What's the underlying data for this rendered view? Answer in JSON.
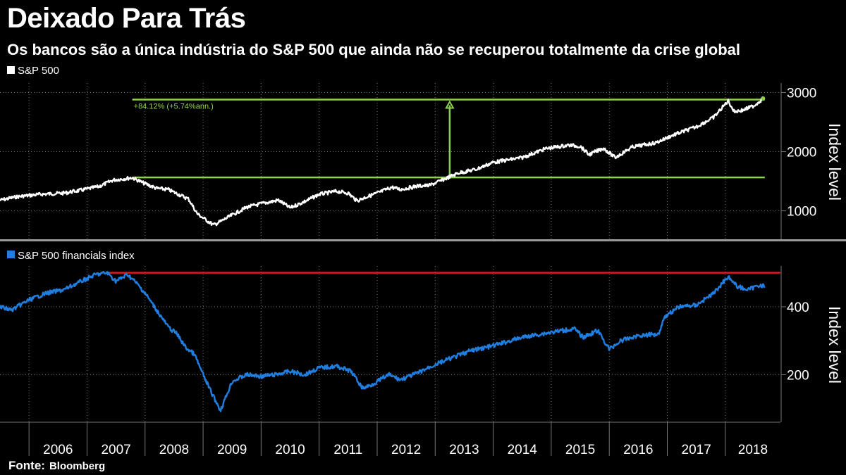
{
  "title": "Deixado Para Trás",
  "subtitle": "Os bancos são a única indústria do S&P 500 que ainda não se recuperou totalmente da crise global",
  "source": {
    "label": "Fonte:",
    "value": "Bloomberg"
  },
  "colors": {
    "background": "#000000",
    "sp500_line": "#ffffff",
    "financials_line": "#1f7ee0",
    "annotation": "#8fd14f",
    "peak_line": "#e0181b",
    "grid": "#777777",
    "divider": "#9a9a9a"
  },
  "chart_data": [
    {
      "type": "line",
      "series": [
        {
          "name": "S&P 500",
          "x": [
            2005.5,
            2005.8,
            2006.2,
            2006.6,
            2006.9,
            2007.2,
            2007.45,
            2007.78,
            2007.95,
            2008.2,
            2008.4,
            2008.55,
            2008.75,
            2008.9,
            2009.0,
            2009.18,
            2009.3,
            2009.5,
            2009.75,
            2010.0,
            2010.3,
            2010.5,
            2010.8,
            2011.0,
            2011.3,
            2011.5,
            2011.65,
            2011.8,
            2012.0,
            2012.25,
            2012.4,
            2012.7,
            2012.9,
            2013.1,
            2013.4,
            2013.7,
            2014.0,
            2014.5,
            2014.9,
            2015.3,
            2015.5,
            2015.65,
            2015.9,
            2016.1,
            2016.4,
            2016.8,
            2017.1,
            2017.5,
            2017.8,
            2018.05,
            2018.15,
            2018.3,
            2018.5,
            2018.65
          ],
          "values": [
            1180,
            1240,
            1280,
            1300,
            1350,
            1410,
            1520,
            1560,
            1480,
            1380,
            1360,
            1290,
            1200,
            950,
            880,
            760,
            820,
            930,
            1060,
            1120,
            1180,
            1050,
            1180,
            1280,
            1330,
            1300,
            1170,
            1230,
            1300,
            1400,
            1360,
            1420,
            1430,
            1510,
            1640,
            1700,
            1820,
            1900,
            2050,
            2110,
            2090,
            1950,
            2060,
            1900,
            2080,
            2150,
            2280,
            2420,
            2580,
            2860,
            2680,
            2700,
            2780,
            2900
          ]
        }
      ],
      "xlim": [
        2005.5,
        2018.95
      ],
      "ylim": [
        520,
        3160
      ],
      "yticks": [
        1000,
        2000,
        3000
      ],
      "ylabel": "Index level",
      "legend": "S&P 500",
      "annotation": {
        "text": "+84.12% (+5.74%ann.)",
        "from_value": 1565,
        "to_value": 2880,
        "start_x": 2007.78,
        "arrow_x": 2013.25,
        "end_x": 2018.68
      }
    },
    {
      "type": "line",
      "series": [
        {
          "name": "S&P 500 financials index",
          "x": [
            2005.5,
            2005.7,
            2006.0,
            2006.3,
            2006.6,
            2006.9,
            2007.15,
            2007.35,
            2007.5,
            2007.7,
            2007.85,
            2008.0,
            2008.2,
            2008.4,
            2008.55,
            2008.7,
            2008.85,
            2009.0,
            2009.15,
            2009.3,
            2009.5,
            2009.75,
            2010.0,
            2010.25,
            2010.5,
            2010.75,
            2011.0,
            2011.3,
            2011.55,
            2011.75,
            2011.9,
            2012.2,
            2012.4,
            2012.7,
            2013.0,
            2013.3,
            2013.6,
            2014.0,
            2014.5,
            2015.0,
            2015.4,
            2015.55,
            2015.8,
            2016.0,
            2016.2,
            2016.5,
            2016.85,
            2016.95,
            2017.2,
            2017.5,
            2017.8,
            2018.05,
            2018.2,
            2018.4,
            2018.6,
            2018.68
          ],
          "values": [
            400,
            390,
            420,
            440,
            450,
            475,
            495,
            500,
            475,
            495,
            470,
            440,
            390,
            340,
            320,
            280,
            260,
            200,
            145,
            95,
            180,
            200,
            195,
            200,
            210,
            200,
            220,
            225,
            210,
            160,
            170,
            200,
            185,
            205,
            230,
            250,
            270,
            285,
            310,
            325,
            335,
            310,
            330,
            275,
            300,
            315,
            320,
            370,
            400,
            405,
            440,
            490,
            460,
            450,
            465,
            460
          ]
        }
      ],
      "xlim": [
        2005.5,
        2018.95
      ],
      "ylim": [
        60,
        520
      ],
      "yticks": [
        200,
        400
      ],
      "ylabel": "Index level",
      "legend": "S&P 500 financials index",
      "peak_line": {
        "value": 500,
        "start_x": 2007.35,
        "end_x": 2018.95
      }
    }
  ],
  "x_axis": {
    "year_labels": [
      "2006",
      "2007",
      "2008",
      "2009",
      "2010",
      "2011",
      "2012",
      "2013",
      "2014",
      "2015",
      "2016",
      "2017",
      "2018"
    ],
    "year_starts": [
      2006,
      2007,
      2008,
      2009,
      2010,
      2011,
      2012,
      2013,
      2014,
      2015,
      2016,
      2017,
      2018
    ]
  }
}
